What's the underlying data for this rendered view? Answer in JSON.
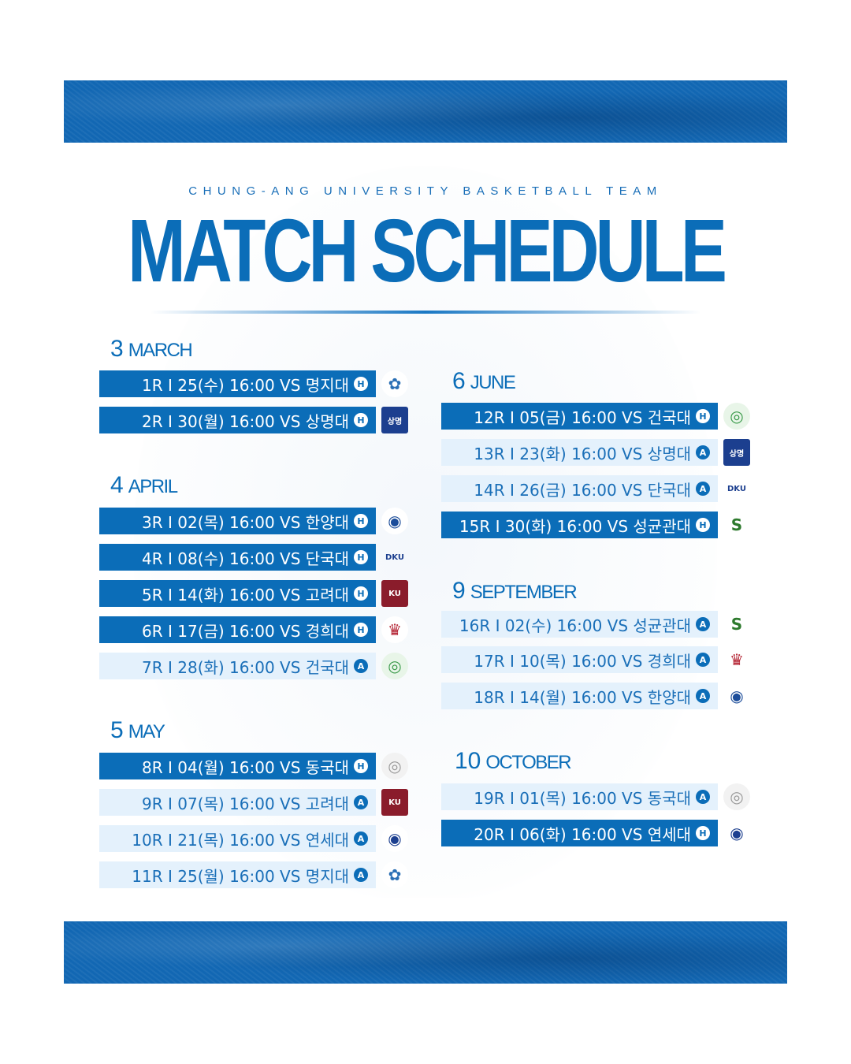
{
  "header": {
    "subtitle": "CHUNG-ANG UNIVERSITY BASKETBALL TEAM",
    "title": "MATCH SCHEDULE"
  },
  "months": [
    {
      "num": "3",
      "name": "MARCH",
      "matches": [
        {
          "text": "1R I 25(수) 16:00 VS 명지대",
          "venue": "H",
          "opponent_logo": "myongji-logo"
        },
        {
          "text": "2R I 30(월) 16:00 VS 상명대",
          "venue": "H",
          "opponent_logo": "sangmyung-logo"
        }
      ]
    },
    {
      "num": "4",
      "name": "APRIL",
      "matches": [
        {
          "text": "3R I 02(목) 16:00 VS 한양대",
          "venue": "H",
          "opponent_logo": "hanyang-logo"
        },
        {
          "text": "4R I 08(수) 16:00 VS 단국대",
          "venue": "H",
          "opponent_logo": "dankook-logo"
        },
        {
          "text": "5R I 14(화) 16:00 VS 고려대",
          "venue": "H",
          "opponent_logo": "korea-logo"
        },
        {
          "text": "6R I 17(금) 16:00 VS 경희대",
          "venue": "H",
          "opponent_logo": "kyunghee-logo"
        },
        {
          "text": "7R I 28(화) 16:00 VS 건국대",
          "venue": "A",
          "opponent_logo": "konkuk-logo"
        }
      ]
    },
    {
      "num": "5",
      "name": "MAY",
      "matches": [
        {
          "text": "8R I 04(월) 16:00 VS 동국대",
          "venue": "H",
          "opponent_logo": "dongguk-logo"
        },
        {
          "text": "9R I 07(목) 16:00 VS 고려대",
          "venue": "A",
          "opponent_logo": "korea-logo"
        },
        {
          "text": "10R I 21(목) 16:00 VS 연세대",
          "venue": "A",
          "opponent_logo": "yonsei-logo"
        },
        {
          "text": "11R I 25(월) 16:00 VS 명지대",
          "venue": "A",
          "opponent_logo": "myongji-logo"
        }
      ]
    },
    {
      "num": "6",
      "name": "JUNE",
      "matches": [
        {
          "text": "12R I 05(금) 16:00 VS 건국대",
          "venue": "H",
          "opponent_logo": "konkuk-logo"
        },
        {
          "text": "13R I 23(화) 16:00 VS 상명대",
          "venue": "A",
          "opponent_logo": "sangmyung-logo"
        },
        {
          "text": "14R I 26(금) 16:00 VS 단국대",
          "venue": "A",
          "opponent_logo": "dankook-logo"
        },
        {
          "text": "15R I 30(화) 16:00 VS 성균관대",
          "venue": "H",
          "opponent_logo": "sungkyunkwan-logo"
        }
      ]
    },
    {
      "num": "9",
      "name": "SEPTEMBER",
      "matches": [
        {
          "text": "16R I 02(수) 16:00 VS 성균관대",
          "venue": "A",
          "opponent_logo": "sungkyunkwan-logo"
        },
        {
          "text": "17R I 10(목) 16:00 VS 경희대",
          "venue": "A",
          "opponent_logo": "kyunghee-logo"
        },
        {
          "text": "18R I 14(월) 16:00 VS 한양대",
          "venue": "A",
          "opponent_logo": "hanyang-logo"
        }
      ]
    },
    {
      "num": "10",
      "name": "OCTOBER",
      "matches": [
        {
          "text": "19R I 01(목) 16:00 VS 동국대",
          "venue": "A",
          "opponent_logo": "dongguk-logo"
        },
        {
          "text": "20R I 06(화) 16:00 VS 연세대",
          "venue": "H",
          "opponent_logo": "yonsei-logo"
        }
      ]
    }
  ],
  "colors": {
    "primary": "#0b6db8",
    "away_bg": "#e4f1fc"
  }
}
